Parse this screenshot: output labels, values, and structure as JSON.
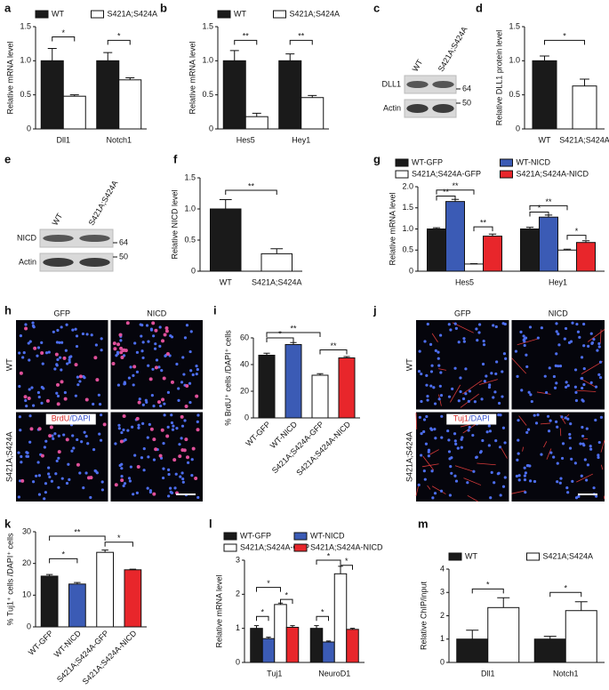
{
  "chart_data": [
    {
      "type": "bar",
      "panel": "a",
      "ylabel": "Relative mRNA level",
      "legend": "top",
      "categories": [
        "Dll1",
        "Notch1"
      ],
      "ylim": [
        0,
        1.5
      ],
      "yticks": [
        0,
        0.5,
        {
          "value": 1,
          "label": "1.0"
        },
        1.5
      ],
      "series": [
        {
          "name": "WT",
          "color": "#1a1a1a",
          "values": [
            1.0,
            1.0
          ],
          "errors": [
            0.18,
            0.12
          ]
        },
        {
          "name": "S421A;S424A",
          "color": "#ffffff",
          "values": [
            0.48,
            0.72
          ],
          "errors": [
            0.02,
            0.03
          ]
        }
      ],
      "annotations": [
        {
          "text": "*",
          "y": 1.35,
          "bars": [
            0,
            1
          ]
        },
        {
          "text": "*",
          "y": 1.3,
          "bars": [
            2,
            3
          ]
        }
      ]
    },
    {
      "type": "bar",
      "panel": "b",
      "ylabel": "Relative mRNA level",
      "legend": "top",
      "categories": [
        "Hes5",
        "Hey1"
      ],
      "ylim": [
        0,
        1.5
      ],
      "yticks": [
        0,
        0.5,
        {
          "value": 1,
          "label": "1.0"
        },
        1.5
      ],
      "series": [
        {
          "name": "WT",
          "color": "#1a1a1a",
          "values": [
            1.0,
            1.0
          ],
          "errors": [
            0.15,
            0.1
          ]
        },
        {
          "name": "S421A;S424A",
          "color": "#ffffff",
          "values": [
            0.18,
            0.46
          ],
          "errors": [
            0.05,
            0.03
          ]
        }
      ],
      "annotations": [
        {
          "text": "**",
          "y": 1.3,
          "bars": [
            0,
            1
          ]
        },
        {
          "text": "**",
          "y": 1.3,
          "bars": [
            2,
            3
          ]
        }
      ]
    },
    {
      "type": "bar",
      "panel": "d",
      "ylabel": "Relative DLL1 protein level",
      "categories": [
        "WT",
        "S421A;S424A"
      ],
      "ylim": [
        0,
        1.5
      ],
      "yticks": [
        0,
        0.5,
        {
          "value": 1,
          "label": "1.0"
        },
        1.5
      ],
      "series": [
        {
          "colors": [
            "#1a1a1a",
            "#ffffff"
          ],
          "values": [
            1.0,
            0.63
          ],
          "errors": [
            0.07,
            0.1
          ]
        }
      ],
      "annotations": [
        {
          "text": "*",
          "y": 1.3,
          "bars": [
            0,
            1
          ]
        }
      ]
    },
    {
      "type": "bar",
      "panel": "f",
      "ylabel": "Relative NICD level",
      "categories": [
        "WT",
        "S421A;S424A"
      ],
      "ylim": [
        0,
        1.5
      ],
      "yticks": [
        0,
        0.5,
        {
          "value": 1,
          "label": "1.0"
        },
        1.5
      ],
      "series": [
        {
          "colors": [
            "#1a1a1a",
            "#ffffff"
          ],
          "values": [
            1.0,
            0.28
          ],
          "errors": [
            0.15,
            0.08
          ]
        }
      ],
      "annotations": [
        {
          "text": "**",
          "y": 1.3,
          "bars": [
            0,
            1
          ]
        }
      ]
    },
    {
      "type": "bar",
      "panel": "g",
      "ylabel": "Relative mRNA level",
      "legend": "top",
      "categories": [
        "Hes5",
        "Hey1"
      ],
      "ylim": [
        0,
        2
      ],
      "yticks": [
        0,
        0.5,
        {
          "value": 1,
          "label": "1.0"
        },
        1.5,
        {
          "value": 2,
          "label": "2.0"
        }
      ],
      "series": [
        {
          "name": "WT-GFP",
          "color": "#1a1a1a",
          "values": [
            1.0,
            1.0
          ],
          "errors": [
            0.03,
            0.04
          ]
        },
        {
          "name": "WT-NICD",
          "color": "#3b5bb5",
          "values": [
            1.65,
            1.28
          ],
          "errors": [
            0.05,
            0.05
          ]
        },
        {
          "name": "S421A;S424A-GFP",
          "color": "#ffffff",
          "values": [
            0.17,
            0.5
          ],
          "errors": [
            0.01,
            0.02
          ]
        },
        {
          "name": "S421A;S424A-NICD",
          "color": "#e8262b",
          "values": [
            0.83,
            0.68
          ],
          "errors": [
            0.05,
            0.04
          ]
        }
      ],
      "annotations": [
        {
          "text": "**",
          "y": 1.78,
          "bars": [
            0,
            1
          ]
        },
        {
          "text": "**",
          "y": 1.92,
          "bars": [
            0,
            2
          ]
        },
        {
          "text": "**",
          "y": 1.05,
          "bars": [
            2,
            3
          ]
        },
        {
          "text": "*",
          "y": 1.4,
          "bars": [
            4,
            5
          ]
        },
        {
          "text": "**",
          "y": 1.55,
          "bars": [
            4,
            6
          ]
        },
        {
          "text": "*",
          "y": 0.85,
          "bars": [
            6,
            7
          ]
        }
      ]
    },
    {
      "type": "bar",
      "panel": "i",
      "ylabel": "% BrdU⁺ cells /DAPI⁺ cells",
      "categories": [
        "WT-GFP",
        "WT-NICD",
        "S421A;S424A-GFP",
        "S421A;S424A-NICD"
      ],
      "ylim": [
        0,
        60
      ],
      "yticks": [
        0,
        20,
        40,
        60
      ],
      "series": [
        {
          "colors": [
            "#1a1a1a",
            "#3b5bb5",
            "#ffffff",
            "#e8262b"
          ],
          "values": [
            47,
            55,
            32,
            45
          ],
          "errors": [
            1.5,
            1.5,
            1.2,
            1
          ]
        }
      ],
      "annotations": [
        {
          "text": "*",
          "y": 60,
          "bars": [
            0,
            1
          ]
        },
        {
          "text": "**",
          "y": 64,
          "bars": [
            0,
            2
          ]
        },
        {
          "text": "**",
          "y": 51,
          "bars": [
            2,
            3
          ]
        }
      ]
    },
    {
      "type": "bar",
      "panel": "k",
      "ylabel": "% Tuj1⁺ cells /DAPI⁺ cells",
      "categories": [
        "WT-GFP",
        "WT-NICD",
        "S421A;S424A-GFP",
        "S421A;S424A-NICD"
      ],
      "ylim": [
        0,
        30
      ],
      "yticks": [
        0,
        10,
        20,
        30
      ],
      "series": [
        {
          "colors": [
            "#1a1a1a",
            "#3b5bb5",
            "#ffffff",
            "#e8262b"
          ],
          "values": [
            16,
            13.5,
            23.5,
            18
          ],
          "errors": [
            0.5,
            0.5,
            0.7,
            0.2
          ]
        }
      ],
      "annotations": [
        {
          "text": "*",
          "y": 21.5,
          "bars": [
            0,
            1
          ]
        },
        {
          "text": "**",
          "y": 28.6,
          "bars": [
            0,
            2
          ]
        },
        {
          "text": "*",
          "y": 26.7,
          "bars": [
            2,
            3
          ]
        }
      ]
    },
    {
      "type": "bar",
      "panel": "l",
      "ylabel": "Relative mRNA level",
      "legend": "top",
      "categories": [
        "Tuj1",
        "NeuroD1"
      ],
      "ylim": [
        0,
        3
      ],
      "yticks": [
        0,
        1,
        2,
        3
      ],
      "series": [
        {
          "name": "WT-GFP",
          "color": "#1a1a1a",
          "values": [
            1.0,
            1.0
          ],
          "errors": [
            0.08,
            0.08
          ]
        },
        {
          "name": "WT-NICD",
          "color": "#3b5bb5",
          "values": [
            0.7,
            0.6
          ],
          "errors": [
            0.04,
            0.03
          ]
        },
        {
          "name": "S421A;S424A-GFP",
          "color": "#ffffff",
          "values": [
            1.7,
            2.6
          ],
          "errors": [
            0.04,
            0.22
          ]
        },
        {
          "name": "S421A;S424A-NICD",
          "color": "#e8262b",
          "values": [
            1.03,
            0.97
          ],
          "errors": [
            0.05,
            0.03
          ]
        }
      ],
      "annotations": [
        {
          "text": "*",
          "y": 1.35,
          "bars": [
            0,
            1
          ]
        },
        {
          "text": "*",
          "y": 2.2,
          "bars": [
            0,
            2
          ]
        },
        {
          "text": "*",
          "y": 1.85,
          "bars": [
            2,
            3
          ]
        },
        {
          "text": "*",
          "y": 1.35,
          "bars": [
            4,
            5
          ]
        },
        {
          "text": "*",
          "y": 3.0,
          "bars": [
            4,
            6
          ]
        },
        {
          "text": "*",
          "y": 2.85,
          "bars": [
            6,
            7
          ]
        }
      ]
    },
    {
      "type": "bar",
      "panel": "m",
      "ylabel": "Relative ChIP/input",
      "legend": "top",
      "categories": [
        "Dll1",
        "Notch1"
      ],
      "ylim": [
        0,
        4
      ],
      "yticks": [
        0,
        1,
        2,
        3,
        4
      ],
      "series": [
        {
          "name": "WT",
          "color": "#1a1a1a",
          "values": [
            1.0,
            1.0
          ],
          "errors": [
            0.38,
            0.12
          ]
        },
        {
          "name": "S421A;S424A",
          "color": "#ffffff",
          "values": [
            2.35,
            2.22
          ],
          "errors": [
            0.42,
            0.38
          ]
        }
      ],
      "annotations": [
        {
          "text": "*",
          "y": 3.15,
          "bars": [
            0,
            1
          ]
        },
        {
          "text": "*",
          "y": 3.0,
          "bars": [
            2,
            3
          ]
        }
      ]
    }
  ],
  "blots": [
    {
      "panel": "c",
      "lanes": [
        "WT",
        "S421A;S424A"
      ],
      "bands": [
        "DLL1",
        "Actin"
      ],
      "markers": [
        64,
        50
      ]
    },
    {
      "panel": "e",
      "lanes": [
        "WT",
        "S421A;S424A"
      ],
      "bands": [
        "NICD",
        "Actin"
      ],
      "markers": [
        64,
        50
      ]
    }
  ],
  "images": [
    {
      "panel": "h",
      "columns": [
        "GFP",
        "NICD"
      ],
      "rows": [
        "WT",
        "S421A;S424A"
      ],
      "stain": [
        "BrdU",
        "/DAPI"
      ]
    },
    {
      "panel": "j",
      "columns": [
        "GFP",
        "NICD"
      ],
      "rows": [
        "WT",
        "S421A;S424A"
      ],
      "stain": [
        "Tuj1",
        "/DAPI"
      ]
    }
  ]
}
